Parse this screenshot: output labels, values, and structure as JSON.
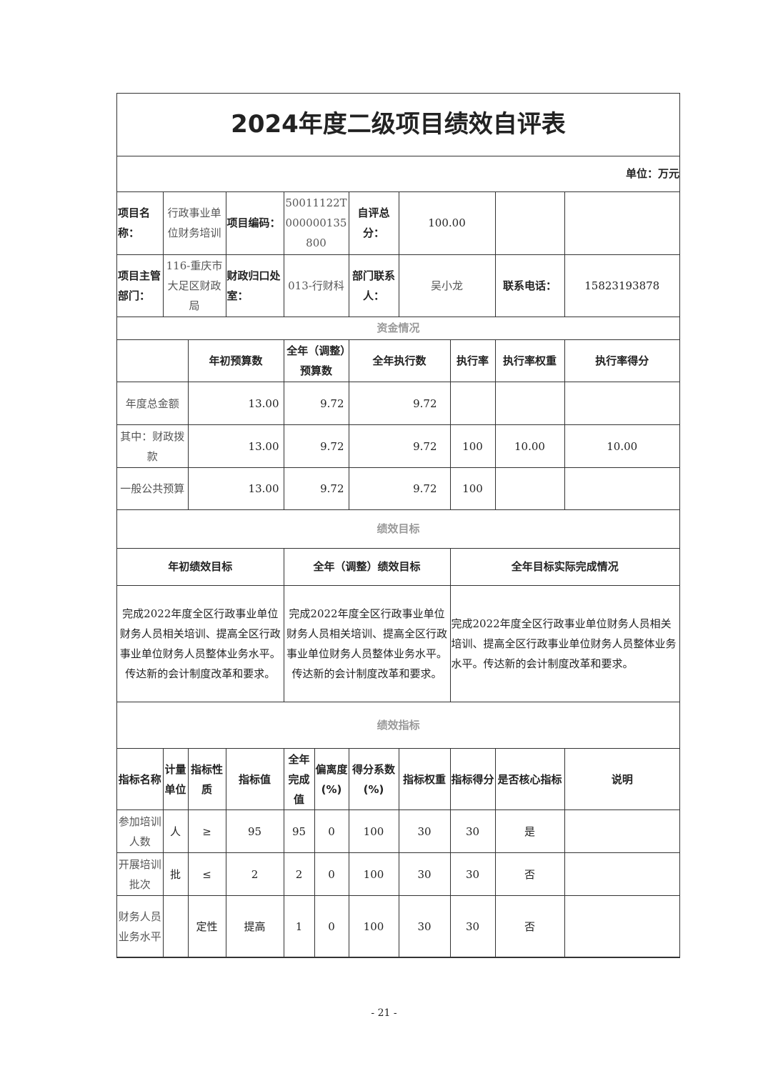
{
  "title": "2024年度二级项目绩效自评表",
  "unit": "单位：万元",
  "info": {
    "name_label": "项目名称：",
    "name": "行政事业单位财务培训",
    "code_label": "项目编码：",
    "code": "50011122T000000135800",
    "score_label": "自评总分：",
    "score": "100.00",
    "dept_label": "项目主管部门：",
    "dept": "116-重庆市大足区财政局",
    "office_label": "财政归口处室：",
    "office": "013-行财科",
    "contact_label": "部门联系人：",
    "contact": "吴小龙",
    "phone_label": "联系电话：",
    "phone": "15823193878"
  },
  "funds": {
    "section": "资金情况",
    "headers": [
      "",
      "年初预算数",
      "全年（调整）预算数",
      "全年执行数",
      "执行率",
      "执行率权重",
      "执行率得分"
    ],
    "rows": [
      [
        "年度总金额",
        "13.00",
        "9.72",
        "9.72",
        "",
        "",
        ""
      ],
      [
        "其中：财政拨款",
        "13.00",
        "9.72",
        "9.72",
        "100",
        "10.00",
        "10.00"
      ],
      [
        "一般公共预算",
        "13.00",
        "9.72",
        "9.72",
        "100",
        "",
        ""
      ]
    ]
  },
  "goals": {
    "section": "绩效目标",
    "headers": [
      "年初绩效目标",
      "全年（调整）绩效目标",
      "全年目标实际完成情况"
    ],
    "initial": "完成2022年度全区行政事业单位财务人员相关培训、提高全区行政事业单位财务人员整体业务水平。传达新的会计制度改革和要求。",
    "adjusted": "完成2022年度全区行政事业单位财务人员相关培训、提高全区行政事业单位财务人员整体业务水平。传达新的会计制度改革和要求。",
    "actual": "完成2022年度全区行政事业单位财务人员相关培训、提高全区行政事业单位财务人员整体业务水平。传达新的会计制度改革和要求。"
  },
  "indicators": {
    "section": "绩效指标",
    "headers": [
      "指标名称",
      "计量单位",
      "指标性质",
      "指标值",
      "全年完成值",
      "偏离度(%)",
      "得分系数(%)",
      "指标权重",
      "指标得分",
      "是否核心指标",
      "说明"
    ],
    "rows": [
      [
        "参加培训人数",
        "人",
        "≥",
        "95",
        "95",
        "0",
        "100",
        "30",
        "30",
        "是",
        ""
      ],
      [
        "开展培训批次",
        "批",
        "≤",
        "2",
        "2",
        "0",
        "100",
        "30",
        "30",
        "否",
        ""
      ],
      [
        "财务人员业务水平",
        "",
        "定性",
        "提高",
        "1",
        "0",
        "100",
        "30",
        "30",
        "否",
        ""
      ]
    ]
  },
  "page_number": "- 21 -"
}
